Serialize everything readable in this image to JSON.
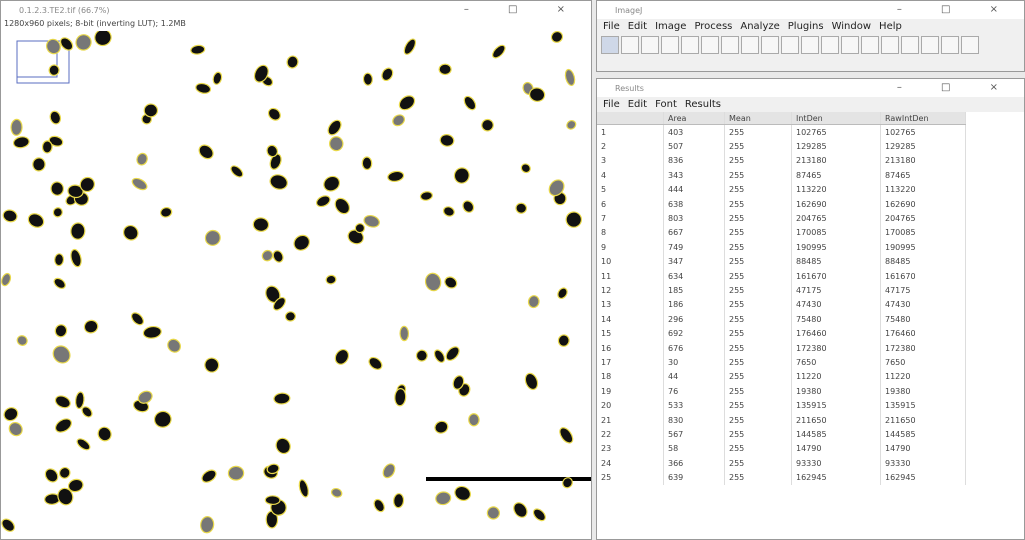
{
  "image_window": {
    "title": "0.1.2.3.TE2.tif (66.7%)",
    "info": "1280x960 pixels; 8-bit (inverting LUT); 1.2MB"
  },
  "imagej_window": {
    "title": "ImageJ",
    "menu": [
      "File",
      "Edit",
      "Image",
      "Process",
      "Analyze",
      "Plugins",
      "Window",
      "Help"
    ]
  },
  "results_window": {
    "title": "Results",
    "menu": [
      "File",
      "Edit",
      "Font",
      "Results"
    ],
    "table": {
      "columns": [
        "Area",
        "Mean",
        "IntDen",
        "RawIntDen"
      ],
      "rows": [
        [
          "1",
          403,
          255,
          102765,
          102765
        ],
        [
          "2",
          507,
          255,
          129285,
          129285
        ],
        [
          "3",
          836,
          255,
          213180,
          213180
        ],
        [
          "4",
          343,
          255,
          87465,
          87465
        ],
        [
          "5",
          444,
          255,
          113220,
          113220
        ],
        [
          "6",
          638,
          255,
          162690,
          162690
        ],
        [
          "7",
          803,
          255,
          204765,
          204765
        ],
        [
          "8",
          667,
          255,
          170085,
          170085
        ],
        [
          "9",
          749,
          255,
          190995,
          190995
        ],
        [
          "10",
          347,
          255,
          88485,
          88485
        ],
        [
          "11",
          634,
          255,
          161670,
          161670
        ],
        [
          "12",
          185,
          255,
          47175,
          47175
        ],
        [
          "13",
          186,
          255,
          47430,
          47430
        ],
        [
          "14",
          296,
          255,
          75480,
          75480
        ],
        [
          "15",
          692,
          255,
          176460,
          176460
        ],
        [
          "16",
          676,
          255,
          172380,
          172380
        ],
        [
          "17",
          30,
          255,
          7650,
          7650
        ],
        [
          "18",
          44,
          255,
          11220,
          11220
        ],
        [
          "19",
          76,
          255,
          19380,
          19380
        ],
        [
          "20",
          533,
          255,
          135915,
          135915
        ],
        [
          "21",
          830,
          255,
          211650,
          211650
        ],
        [
          "22",
          567,
          255,
          144585,
          144585
        ],
        [
          "23",
          58,
          255,
          14790,
          14790
        ],
        [
          "24",
          366,
          255,
          93330,
          93330
        ],
        [
          "25",
          639,
          255,
          162945,
          162945
        ]
      ]
    }
  }
}
